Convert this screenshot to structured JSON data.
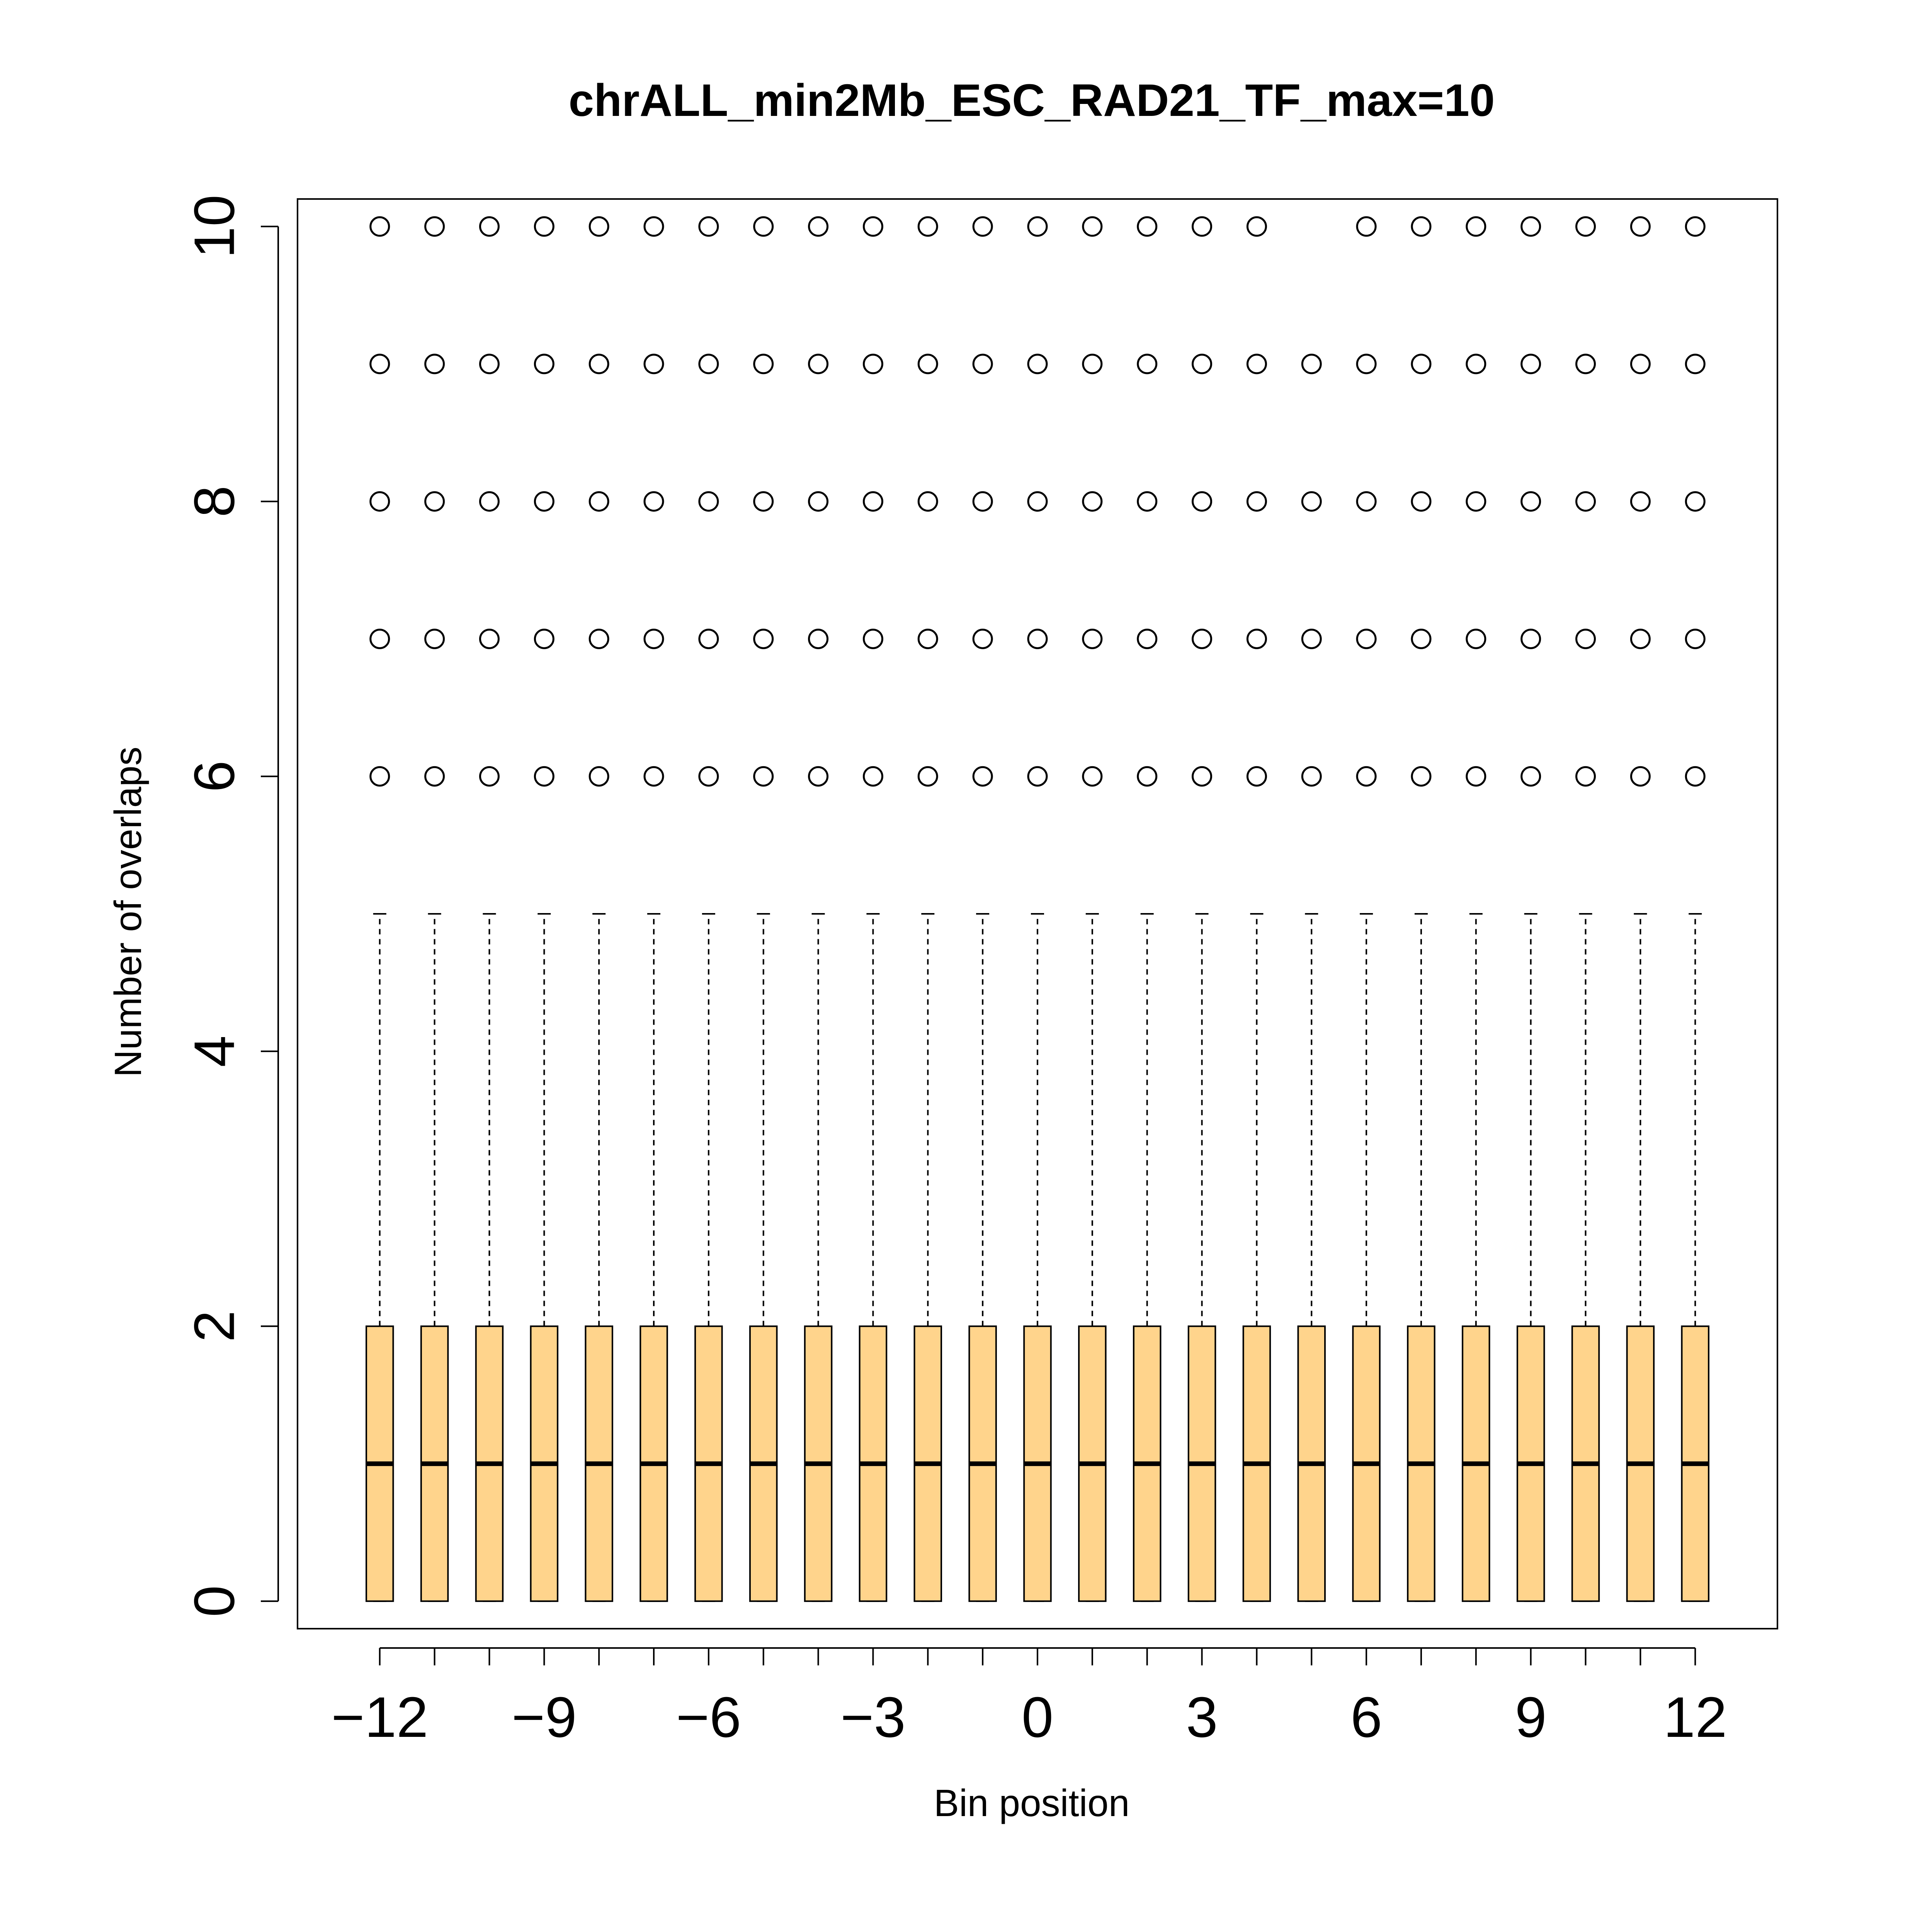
{
  "chart_data": {
    "type": "box",
    "title": "chrALL_min2Mb_ESC_RAD21_TF_max=10",
    "xlabel": "Bin position",
    "ylabel": "Number of overlaps",
    "x": [
      -12,
      -11,
      -10,
      -9,
      -8,
      -7,
      -6,
      -5,
      -4,
      -3,
      -2,
      -1,
      0,
      1,
      2,
      3,
      4,
      5,
      6,
      7,
      8,
      9,
      10,
      11,
      12
    ],
    "x_tick_labels": [
      "−12",
      "−9",
      "−6",
      "−3",
      "0",
      "3",
      "6",
      "9",
      "12"
    ],
    "x_tick_label_values": [
      -12,
      -9,
      -6,
      -3,
      0,
      3,
      6,
      9,
      12
    ],
    "y_tick_labels": [
      "0",
      "2",
      "4",
      "6",
      "8",
      "10"
    ],
    "y_tick_values": [
      0,
      2,
      4,
      6,
      8,
      10
    ],
    "xlim": [
      -13.5,
      13.5
    ],
    "ylim": [
      -0.2,
      10.2
    ],
    "grid": false,
    "box_color": "#FFD48C",
    "box_stats": {
      "whisker_low": 0,
      "q1": 0,
      "median": 1,
      "q3": 2,
      "whisker_high": 5
    },
    "outliers": [
      [
        6,
        7,
        8,
        9,
        10
      ],
      [
        6,
        7,
        8,
        9,
        10
      ],
      [
        6,
        7,
        8,
        9,
        10
      ],
      [
        6,
        7,
        8,
        9,
        10
      ],
      [
        6,
        7,
        8,
        9,
        10
      ],
      [
        6,
        7,
        8,
        9,
        10
      ],
      [
        6,
        7,
        8,
        9,
        10
      ],
      [
        6,
        7,
        8,
        9,
        10
      ],
      [
        6,
        7,
        8,
        9,
        10
      ],
      [
        6,
        7,
        8,
        9,
        10
      ],
      [
        6,
        7,
        8,
        9,
        10
      ],
      [
        6,
        7,
        8,
        9,
        10
      ],
      [
        6,
        7,
        8,
        9,
        10
      ],
      [
        6,
        7,
        8,
        9,
        10
      ],
      [
        6,
        7,
        8,
        9,
        10
      ],
      [
        6,
        7,
        8,
        9,
        10
      ],
      [
        6,
        7,
        8,
        9,
        10
      ],
      [
        6,
        7,
        8,
        9
      ],
      [
        6,
        7,
        8,
        9,
        10
      ],
      [
        6,
        7,
        8,
        9,
        10
      ],
      [
        6,
        7,
        8,
        9,
        10
      ],
      [
        6,
        7,
        8,
        9,
        10
      ],
      [
        6,
        7,
        8,
        9,
        10
      ],
      [
        6,
        7,
        8,
        9,
        10
      ],
      [
        6,
        7,
        8,
        9,
        10
      ]
    ]
  }
}
